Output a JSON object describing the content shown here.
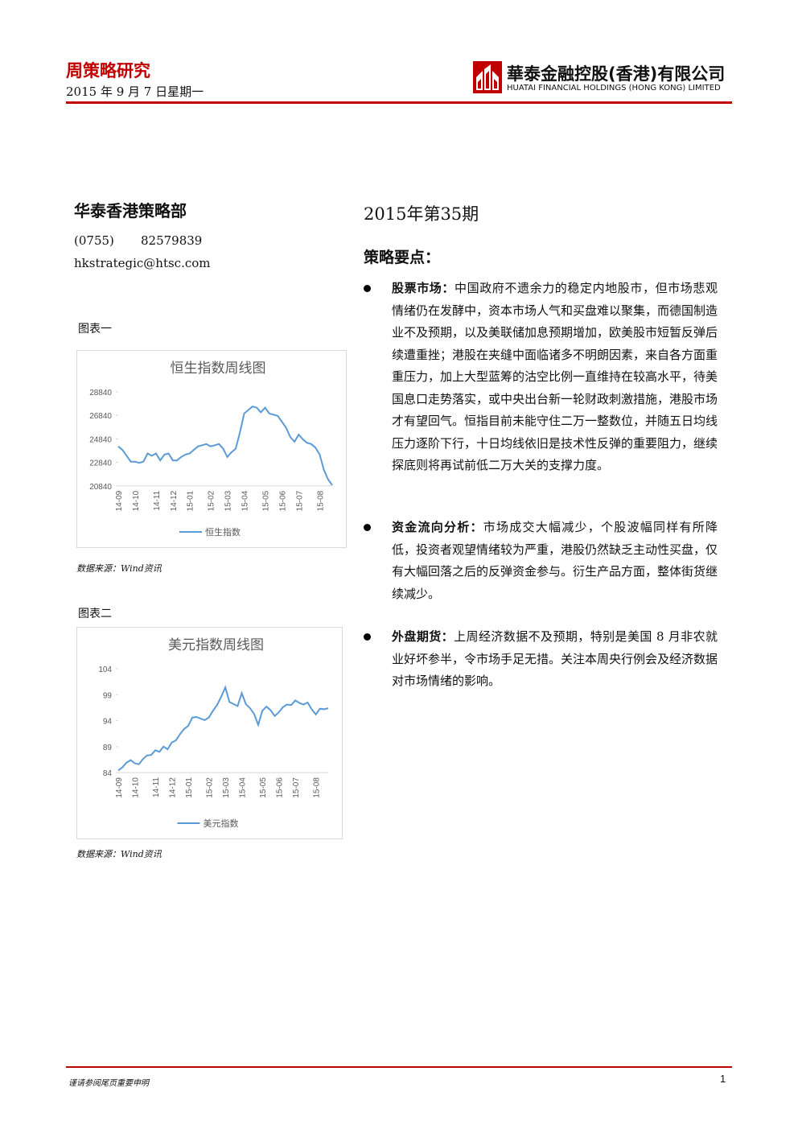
{
  "header": {
    "title": "周策略研究",
    "date": "2015 年 9 月 7 日星期一",
    "company": "華泰金融控股(香港)有限公司",
    "company_en": "HUATAI FINANCIAL HOLDINGS (HONG KONG) LIMITED"
  },
  "contact": {
    "department": "华泰香港策略部",
    "area_code": "(0755)",
    "phone": "82579839",
    "email": "hkstrategic@htsc.com"
  },
  "figures": [
    {
      "label": "图表一",
      "source": "数据来源：Wind资讯",
      "chart": {
        "type": "line",
        "title": "恒生指数周线图",
        "categories": [
          "14-09",
          null,
          null,
          null,
          "14-10",
          null,
          null,
          null,
          null,
          "14-11",
          null,
          null,
          null,
          "14-12",
          null,
          null,
          null,
          "15-01",
          null,
          null,
          null,
          null,
          "15-02",
          null,
          null,
          null,
          "15-03",
          null,
          null,
          null,
          "15-04",
          null,
          null,
          null,
          null,
          "15-05",
          null,
          null,
          null,
          "15-06",
          null,
          null,
          null,
          "15-07",
          null,
          null,
          null,
          null,
          "15-08",
          null,
          null,
          null
        ],
        "series": [
          {
            "name": "恒生指数",
            "color": "#5b9bd5",
            "values": [
              24200,
              23900,
              23400,
              22900,
              22900,
              22800,
              22900,
              23600,
              23400,
              23600,
              23000,
              23500,
              23600,
              23000,
              23000,
              23300,
              23500,
              23600,
              23900,
              24200,
              24300,
              24400,
              24200,
              24300,
              24400,
              24000,
              23300,
              23700,
              24000,
              25400,
              27000,
              27300,
              27600,
              27500,
              27100,
              27500,
              27000,
              26900,
              26800,
              26300,
              25800,
              25000,
              24600,
              25200,
              24800,
              24500,
              24400,
              24100,
              23500,
              22200,
              21400,
              20900
            ]
          }
        ],
        "ylim": [
          20840,
          28840
        ],
        "yticks": [
          20840,
          22840,
          24840,
          26840,
          28840
        ]
      }
    },
    {
      "label": "图表二",
      "source": "数据来源：Wind资讯",
      "chart": {
        "type": "line",
        "title": "美元指数周线图",
        "categories": [
          "14-09",
          null,
          null,
          null,
          "14-10",
          null,
          null,
          null,
          null,
          "14-11",
          null,
          null,
          null,
          "14-12",
          null,
          null,
          null,
          "15-01",
          null,
          null,
          null,
          null,
          "15-02",
          null,
          null,
          null,
          "15-03",
          null,
          null,
          null,
          "15-04",
          null,
          null,
          null,
          null,
          "15-05",
          null,
          null,
          null,
          "15-06",
          null,
          null,
          null,
          "15-07",
          null,
          null,
          null,
          null,
          "15-08",
          null,
          null,
          null
        ],
        "series": [
          {
            "name": "美元指数",
            "color": "#5b9bd5",
            "values": [
              84.4,
              85.0,
              85.9,
              86.4,
              85.8,
              85.6,
              86.6,
              87.3,
              87.4,
              88.3,
              88.0,
              89.0,
              88.5,
              89.8,
              90.2,
              91.4,
              92.4,
              93.0,
              94.6,
              94.7,
              94.4,
              94.1,
              94.6,
              95.9,
              97.0,
              98.6,
              100.4,
              97.6,
              97.2,
              96.8,
              99.3,
              97.2,
              96.4,
              95.3,
              93.2,
              95.9,
              96.7,
              96.0,
              94.9,
              95.6,
              96.6,
              97.1,
              97.0,
              97.9,
              97.4,
              97.1,
              97.5,
              96.2,
              95.2,
              96.3,
              96.2,
              96.4
            ]
          }
        ],
        "ylim": [
          84,
          104
        ],
        "yticks": [
          84,
          89,
          94,
          99,
          104
        ]
      }
    }
  ],
  "report": {
    "issue": "2015年第35期",
    "heading": "策略要点：",
    "points": [
      {
        "lead": "股票市场：",
        "text": "中国政府不遗余力的稳定内地股市，但市场悲观情绪仍在发酵中，资本市场人气和买盘难以聚集，而德国制造业不及预期，以及美联储加息预期增加，欧美股市短暂反弹后续遭重挫；港股在夹缝中面临诸多不明朗因素，来自各方面重重压力，加上大型蓝筹的沽空比例一直维持在较高水平，待美国息口走势落实，或中央出台新一轮财政刺激措施，港股市场才有望回气。恒指目前未能守住二万一整数位，并随五日均线压力逐阶下行，十日均线依旧是技术性反弹的重要阻力，继续探底则将再试前低二万大关的支撑力度。"
      },
      {
        "lead": "资金流向分析：",
        "text": "市场成交大幅减少，个股波幅同样有所降低，投资者观望情绪较为严重，港股仍然缺乏主动性买盘，仅有大幅回落之后的反弹资金参与。衍生产品方面，整体街货继续减少。"
      },
      {
        "lead": "外盘期货：",
        "text": "上周经济数据不及预期，特别是美国 8 月非农就业好坏参半，令市场手足无措。关注本周央行例会及经济数据对市场情绪的影响。"
      }
    ]
  },
  "footer": {
    "disclaimer": "谨请参阅尾页重要申明",
    "page": "1"
  }
}
